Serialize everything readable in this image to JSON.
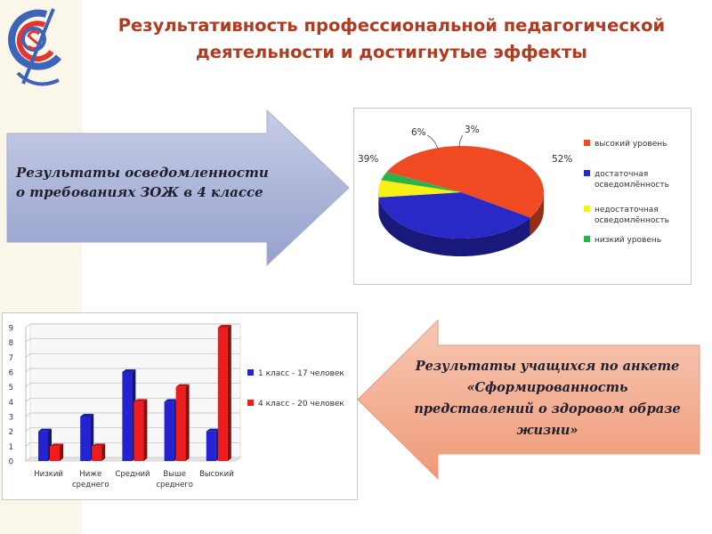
{
  "title": {
    "line1": "Результативность профессиональной педагогической",
    "line2": "деятельности и достигнутые эффекты"
  },
  "arrow_right": {
    "line1": "Результаты осведомленности",
    "line2": "о требованиях ЗОЖ в 4 классе"
  },
  "arrow_left": {
    "line1": "Результаты учащихся по анкете",
    "line2": "«Сформированность",
    "line3": "представлений о здоровом образе",
    "line4": "жизни»"
  },
  "colors": {
    "title": "#b23a1f",
    "arrow_right": "#9ea8d0",
    "arrow_left": "#f2a98c",
    "pie_red": "#f04a22",
    "pie_blue": "#2929c8",
    "pie_yellow": "#f6f015",
    "pie_green": "#2bb24c",
    "bar_blue": "#2323d4",
    "bar_red": "#ee1c1c"
  },
  "chart_data": [
    {
      "type": "pie",
      "slices": [
        {
          "label": "высокий уровень",
          "value": 52,
          "value_label": "52%",
          "color": "#f04a22"
        },
        {
          "label": "достаточная осведомлённость",
          "value": 39,
          "value_label": "39%",
          "color": "#2929c8"
        },
        {
          "label": "недостаточная осведомлённость",
          "value": 6,
          "value_label": "6%",
          "color": "#f6f015"
        },
        {
          "label": "низкий уровень",
          "value": 3,
          "value_label": "3%",
          "color": "#2bb24c"
        }
      ],
      "legend": [
        {
          "line1": "высокий уровень",
          "line2": ""
        },
        {
          "line1": "достаточная",
          "line2": "осведомлённость"
        },
        {
          "line1": "недостаточная",
          "line2": "осведомлённость"
        },
        {
          "line1": "низкий уровень",
          "line2": ""
        }
      ],
      "legend_position": "right"
    },
    {
      "type": "bar",
      "categories": [
        {
          "line1": "Низкий",
          "line2": ""
        },
        {
          "line1": "Ниже",
          "line2": "среднего"
        },
        {
          "line1": "Средний",
          "line2": ""
        },
        {
          "line1": "Выше",
          "line2": "среднего"
        },
        {
          "line1": "Высокий",
          "line2": ""
        }
      ],
      "series": [
        {
          "name": "1 класс - 17 человек",
          "values": [
            2,
            3,
            6,
            4,
            2
          ],
          "color": "#2323d4"
        },
        {
          "name": "4 класс - 20 человек",
          "values": [
            1,
            1,
            4,
            5,
            9
          ],
          "color": "#ee1c1c"
        }
      ],
      "yticks": [
        "0",
        "1",
        "2",
        "3",
        "4",
        "5",
        "6",
        "7",
        "8",
        "9"
      ],
      "ylim": [
        0,
        9
      ],
      "grid": true,
      "legend_position": "right"
    }
  ]
}
